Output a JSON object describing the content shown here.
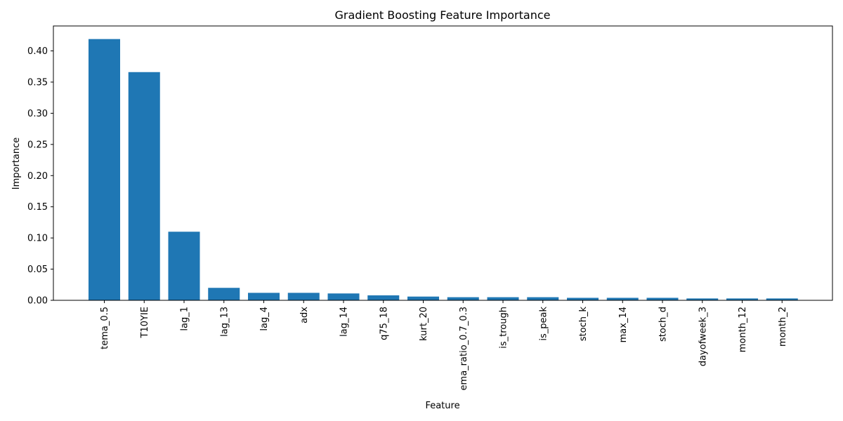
{
  "chart_data": {
    "type": "bar",
    "title": "Gradient Boosting Feature Importance",
    "xlabel": "Feature",
    "ylabel": "Importance",
    "ylim": [
      0,
      0.44
    ],
    "yticks": [
      "0.00",
      "0.05",
      "0.10",
      "0.15",
      "0.20",
      "0.25",
      "0.30",
      "0.35",
      "0.40"
    ],
    "grid": false,
    "bar_color": "#1f77b4",
    "categories": [
      "tema_0.5",
      "T10YIE",
      "lag_1",
      "lag_13",
      "lag_4",
      "adx",
      "lag_14",
      "q75_18",
      "kurt_20",
      "ema_ratio_0.7_0.3",
      "is_trough",
      "is_peak",
      "stoch_k",
      "max_14",
      "stoch_d",
      "dayofweek_3",
      "month_12",
      "month_2"
    ],
    "values": [
      0.419,
      0.366,
      0.11,
      0.02,
      0.012,
      0.012,
      0.011,
      0.008,
      0.006,
      0.005,
      0.005,
      0.005,
      0.004,
      0.004,
      0.004,
      0.003,
      0.003,
      0.003
    ]
  }
}
